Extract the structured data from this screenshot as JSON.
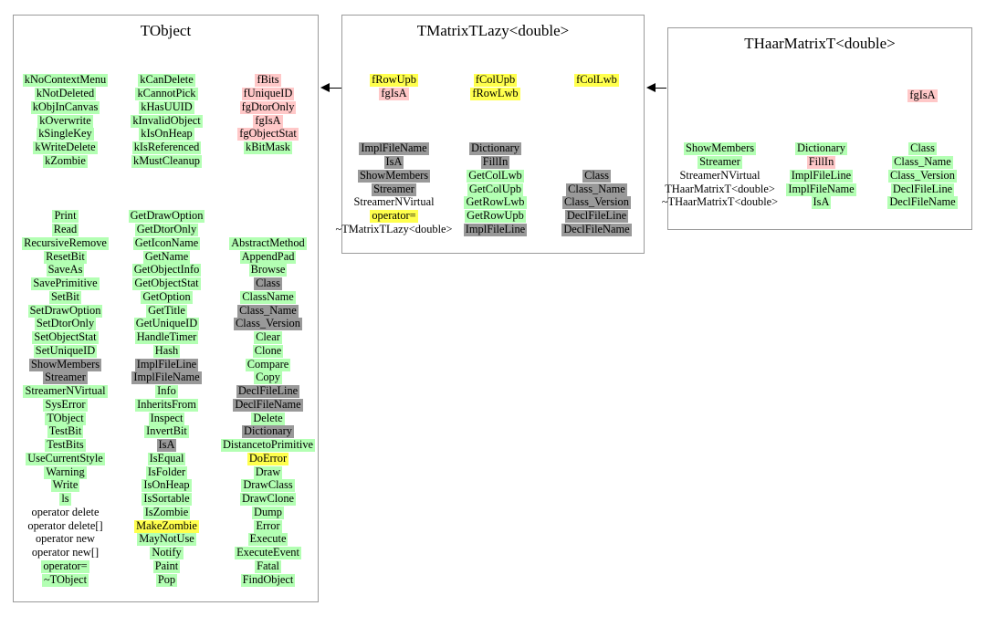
{
  "colors": {
    "green": "#b3ffb3",
    "pink": "#ffc8c8",
    "yellow": "#ffff4d",
    "gray": "#999999",
    "plain": "transparent"
  },
  "tobject": {
    "title": "TObject",
    "col1g1": [
      [
        "kNoContextMenu",
        "green"
      ],
      [
        "kNotDeleted",
        "green"
      ],
      [
        "kObjInCanvas",
        "green"
      ],
      [
        "kOverwrite",
        "green"
      ],
      [
        "kSingleKey",
        "green"
      ],
      [
        "kWriteDelete",
        "green"
      ],
      [
        "kZombie",
        "green"
      ]
    ],
    "col2g1": [
      [
        "kCanDelete",
        "green"
      ],
      [
        "kCannotPick",
        "green"
      ],
      [
        "kHasUUID",
        "green"
      ],
      [
        "kInvalidObject",
        "green"
      ],
      [
        "kIsOnHeap",
        "green"
      ],
      [
        "kIsReferenced",
        "green"
      ],
      [
        "kMustCleanup",
        "green"
      ]
    ],
    "col3g1": [
      [
        "fBits",
        "pink"
      ],
      [
        "fUniqueID",
        "pink"
      ],
      [
        "fgDtorOnly",
        "pink"
      ],
      [
        "fgIsA",
        "pink"
      ],
      [
        "fgObjectStat",
        "pink"
      ],
      [
        "kBitMask",
        "green"
      ]
    ],
    "col1g2": [
      [
        "Print",
        "green"
      ],
      [
        "Read",
        "green"
      ],
      [
        "RecursiveRemove",
        "green"
      ],
      [
        "ResetBit",
        "green"
      ],
      [
        "SaveAs",
        "green"
      ],
      [
        "SavePrimitive",
        "green"
      ],
      [
        "SetBit",
        "green"
      ],
      [
        "SetDrawOption",
        "green"
      ],
      [
        "SetDtorOnly",
        "green"
      ],
      [
        "SetObjectStat",
        "green"
      ],
      [
        "SetUniqueID",
        "green"
      ],
      [
        "ShowMembers",
        "gray"
      ],
      [
        "Streamer",
        "gray"
      ],
      [
        "StreamerNVirtual",
        "green"
      ],
      [
        "SysError",
        "green"
      ],
      [
        "TObject",
        "green"
      ],
      [
        "TestBit",
        "green"
      ],
      [
        "TestBits",
        "green"
      ],
      [
        "UseCurrentStyle",
        "green"
      ],
      [
        "Warning",
        "green"
      ],
      [
        "Write",
        "green"
      ],
      [
        "ls",
        "green"
      ],
      [
        "operator delete",
        "plain"
      ],
      [
        "operator delete[]",
        "plain"
      ],
      [
        "operator new",
        "plain"
      ],
      [
        "operator new[]",
        "plain"
      ],
      [
        "operator=",
        "green"
      ],
      [
        "~TObject",
        "green"
      ]
    ],
    "col2g2": [
      [
        "GetDrawOption",
        "green"
      ],
      [
        "GetDtorOnly",
        "green"
      ],
      [
        "GetIconName",
        "green"
      ],
      [
        "GetName",
        "green"
      ],
      [
        "GetObjectInfo",
        "green"
      ],
      [
        "GetObjectStat",
        "green"
      ],
      [
        "GetOption",
        "green"
      ],
      [
        "GetTitle",
        "green"
      ],
      [
        "GetUniqueID",
        "green"
      ],
      [
        "HandleTimer",
        "green"
      ],
      [
        "Hash",
        "green"
      ],
      [
        "ImplFileLine",
        "gray"
      ],
      [
        "ImplFileName",
        "gray"
      ],
      [
        "Info",
        "green"
      ],
      [
        "InheritsFrom",
        "green"
      ],
      [
        "Inspect",
        "green"
      ],
      [
        "InvertBit",
        "green"
      ],
      [
        "IsA",
        "gray"
      ],
      [
        "IsEqual",
        "green"
      ],
      [
        "IsFolder",
        "green"
      ],
      [
        "IsOnHeap",
        "green"
      ],
      [
        "IsSortable",
        "green"
      ],
      [
        "IsZombie",
        "green"
      ],
      [
        "MakeZombie",
        "yellow"
      ],
      [
        "MayNotUse",
        "green"
      ],
      [
        "Notify",
        "green"
      ],
      [
        "Paint",
        "green"
      ],
      [
        "Pop",
        "green"
      ]
    ],
    "col3g2": [
      [
        "AbstractMethod",
        "green"
      ],
      [
        "AppendPad",
        "green"
      ],
      [
        "Browse",
        "green"
      ],
      [
        "Class",
        "gray"
      ],
      [
        "ClassName",
        "green"
      ],
      [
        "Class_Name",
        "gray"
      ],
      [
        "Class_Version",
        "gray"
      ],
      [
        "Clear",
        "green"
      ],
      [
        "Clone",
        "green"
      ],
      [
        "Compare",
        "green"
      ],
      [
        "Copy",
        "green"
      ],
      [
        "DeclFileLine",
        "gray"
      ],
      [
        "DeclFileName",
        "gray"
      ],
      [
        "Delete",
        "green"
      ],
      [
        "Dictionary",
        "gray"
      ],
      [
        "DistancetoPrimitive",
        "green"
      ],
      [
        "DoError",
        "yellow"
      ],
      [
        "Draw",
        "green"
      ],
      [
        "DrawClass",
        "green"
      ],
      [
        "DrawClone",
        "green"
      ],
      [
        "Dump",
        "green"
      ],
      [
        "Error",
        "green"
      ],
      [
        "Execute",
        "green"
      ],
      [
        "ExecuteEvent",
        "green"
      ],
      [
        "Fatal",
        "green"
      ],
      [
        "FindObject",
        "green"
      ]
    ]
  },
  "tmatrixtlazy": {
    "title": "TMatrixTLazy<double>",
    "col1dm": [
      [
        "fRowUpb",
        "yellow"
      ],
      [
        "fgIsA",
        "pink"
      ]
    ],
    "col2dm": [
      [
        "fColUpb",
        "yellow"
      ],
      [
        "fRowLwb",
        "yellow"
      ]
    ],
    "col3dm": [
      [
        "fColLwb",
        "yellow"
      ]
    ],
    "col1m": [
      [
        "ImplFileName",
        "gray"
      ],
      [
        "IsA",
        "gray"
      ],
      [
        "ShowMembers",
        "gray"
      ],
      [
        "Streamer",
        "gray"
      ],
      [
        "StreamerNVirtual",
        "plain"
      ],
      [
        "operator=",
        "yellow"
      ],
      [
        "~TMatrixTLazy<double>",
        "plain"
      ]
    ],
    "col2m": [
      [
        "Dictionary",
        "gray"
      ],
      [
        "FillIn",
        "gray"
      ],
      [
        "GetColLwb",
        "green"
      ],
      [
        "GetColUpb",
        "green"
      ],
      [
        "GetRowLwb",
        "green"
      ],
      [
        "GetRowUpb",
        "green"
      ],
      [
        "ImplFileLine",
        "gray"
      ]
    ],
    "col3m": [
      [
        "Class",
        "gray"
      ],
      [
        "Class_Name",
        "gray"
      ],
      [
        "Class_Version",
        "gray"
      ],
      [
        "DeclFileLine",
        "gray"
      ],
      [
        "DeclFileName",
        "gray"
      ]
    ]
  },
  "thaarmatrixt": {
    "title": "THaarMatrixT<double>",
    "col3dm": [
      [
        "fgIsA",
        "pink"
      ]
    ],
    "col1m": [
      [
        "ShowMembers",
        "green"
      ],
      [
        "Streamer",
        "green"
      ],
      [
        "StreamerNVirtual",
        "plain"
      ],
      [
        "THaarMatrixT<double>",
        "plain"
      ],
      [
        "~THaarMatrixT<double>",
        "plain"
      ]
    ],
    "col2m": [
      [
        "Dictionary",
        "green"
      ],
      [
        "FillIn",
        "pink"
      ],
      [
        "ImplFileLine",
        "green"
      ],
      [
        "ImplFileName",
        "green"
      ],
      [
        "IsA",
        "green"
      ]
    ],
    "col3m": [
      [
        "Class",
        "green"
      ],
      [
        "Class_Name",
        "green"
      ],
      [
        "Class_Version",
        "green"
      ],
      [
        "DeclFileLine",
        "green"
      ],
      [
        "DeclFileName",
        "green"
      ]
    ]
  }
}
